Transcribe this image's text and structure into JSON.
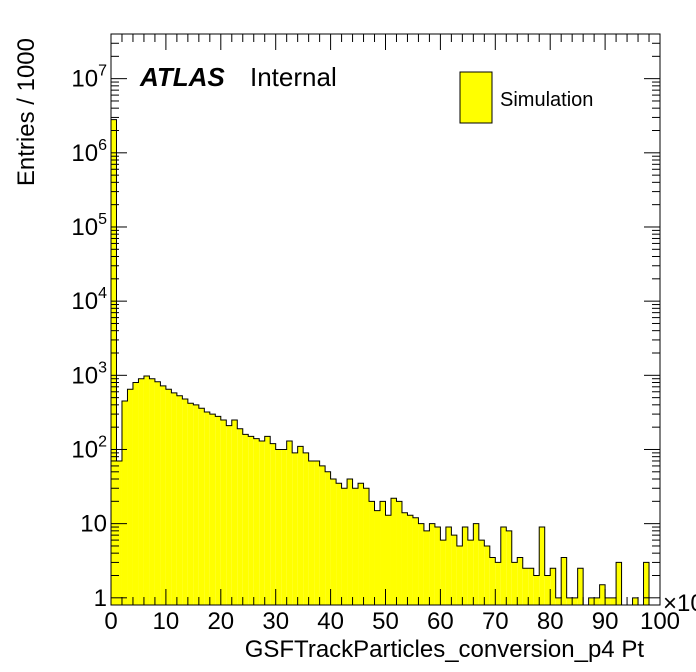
{
  "chart_data": {
    "type": "histogram",
    "xlabel": "GSFTrackParticles_conversion_p4 Pt",
    "ylabel": "Entries / 1000",
    "x_exponent_label": "×10",
    "xlim": [
      0,
      100
    ],
    "ylim": [
      0.8,
      40000000
    ],
    "log_y": true,
    "grid": false,
    "x_ticks": [
      "0",
      "10",
      "20",
      "30",
      "40",
      "50",
      "60",
      "70",
      "80",
      "90",
      "100"
    ],
    "y_ticks": [
      {
        "value": 1,
        "base": "1",
        "exp": ""
      },
      {
        "value": 10,
        "base": "10",
        "exp": ""
      },
      {
        "value": 100,
        "base": "10",
        "exp": "2"
      },
      {
        "value": 1000,
        "base": "10",
        "exp": "3"
      },
      {
        "value": 10000,
        "base": "10",
        "exp": "4"
      },
      {
        "value": 100000,
        "base": "10",
        "exp": "5"
      },
      {
        "value": 1000000,
        "base": "10",
        "exp": "6"
      },
      {
        "value": 10000000,
        "base": "10",
        "exp": "7"
      }
    ],
    "annotation": {
      "bold": "ATLAS",
      "normal": "Internal"
    },
    "legend": {
      "position": "top-right",
      "entries": [
        {
          "label": "Simulation",
          "color": "#ffff00"
        }
      ]
    },
    "fill_color": "#ffff00",
    "line_color": "#000000",
    "series": [
      {
        "name": "Simulation",
        "bin_width": 1,
        "x_start": 0,
        "values": [
          2800000,
          70,
          450,
          650,
          800,
          900,
          980,
          900,
          820,
          720,
          650,
          580,
          530,
          480,
          420,
          400,
          360,
          320,
          300,
          280,
          250,
          210,
          250,
          190,
          160,
          150,
          140,
          130,
          150,
          120,
          100,
          100,
          130,
          90,
          110,
          90,
          70,
          70,
          60,
          50,
          40,
          35,
          30,
          40,
          30,
          35,
          30,
          20,
          15,
          20,
          13,
          22,
          20,
          14,
          13,
          12,
          10,
          8,
          10,
          9,
          6,
          9,
          7,
          5,
          9,
          6,
          10,
          6,
          5,
          3.5,
          3,
          9,
          8,
          3,
          3.5,
          2.5,
          2.5,
          2,
          9,
          2,
          2.5,
          1,
          3.5,
          1,
          1,
          2.5,
          0,
          1,
          1,
          1.5,
          1,
          1,
          3,
          0,
          0,
          1,
          0,
          3,
          0,
          0
        ]
      }
    ]
  }
}
